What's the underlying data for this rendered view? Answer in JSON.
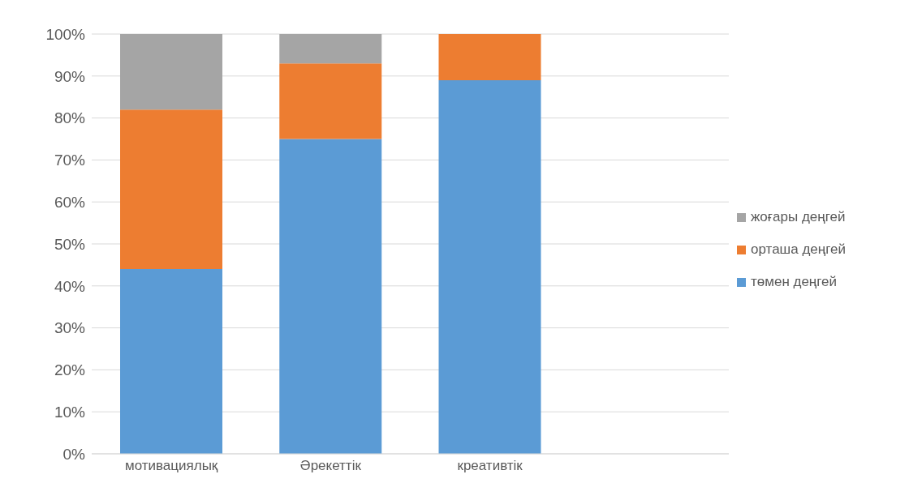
{
  "chart_data": {
    "type": "bar",
    "stacked": true,
    "categories": [
      "мотивациялық",
      "Әрекеттік",
      "креативтік",
      null
    ],
    "series": [
      {
        "name": "төмен деңгей",
        "color": "#5b9bd5",
        "values": [
          44,
          75,
          89,
          null
        ]
      },
      {
        "name": "орташа деңгей",
        "color": "#ed7d31",
        "values": [
          38,
          18,
          11,
          null
        ]
      },
      {
        "name": "жоғары деңгей",
        "color": "#a5a5a5",
        "values": [
          18,
          7,
          0,
          null
        ]
      }
    ],
    "ylim": [
      0,
      100
    ],
    "yticks": [
      {
        "value": 0,
        "label": "0%"
      },
      {
        "value": 10,
        "label": "10%"
      },
      {
        "value": 20,
        "label": "20%"
      },
      {
        "value": 30,
        "label": "30%"
      },
      {
        "value": 40,
        "label": "40%"
      },
      {
        "value": 50,
        "label": "50%"
      },
      {
        "value": 60,
        "label": "60%"
      },
      {
        "value": 70,
        "label": "70%"
      },
      {
        "value": 80,
        "label": "80%"
      },
      {
        "value": 90,
        "label": "90%"
      },
      {
        "value": 100,
        "label": "100%"
      }
    ],
    "grid": "y",
    "legend": "right"
  }
}
